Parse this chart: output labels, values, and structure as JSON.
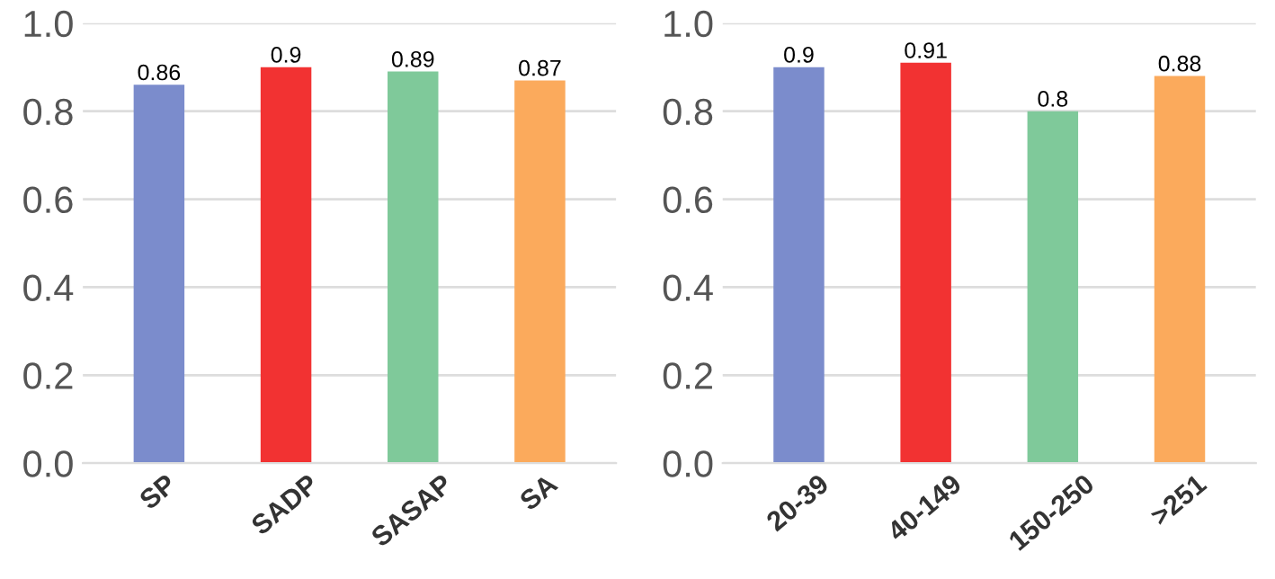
{
  "chart_data": [
    {
      "type": "bar",
      "categories": [
        "SP",
        "SADP",
        "SASAP",
        "SA"
      ],
      "values": [
        0.86,
        0.9,
        0.89,
        0.87
      ],
      "colors": [
        "#7b8ccc",
        "#f23232",
        "#7fc99a",
        "#fbaa5c"
      ],
      "ylim": [
        0,
        1.0
      ],
      "yticks": [
        {
          "value": 0,
          "label": "0.0"
        },
        {
          "value": 0.2,
          "label": "0.2"
        },
        {
          "value": 0.4,
          "label": "0.4"
        },
        {
          "value": 0.6,
          "label": "0.6"
        },
        {
          "value": 0.8,
          "label": "0.8"
        },
        {
          "value": 1.0,
          "label": "1.0"
        }
      ],
      "grid": "y",
      "data_labels": true
    },
    {
      "type": "bar",
      "categories": [
        "20-39",
        "40-149",
        "150-250",
        ">251"
      ],
      "values": [
        0.9,
        0.91,
        0.8,
        0.88
      ],
      "colors": [
        "#7b8ccc",
        "#f23232",
        "#7fc99a",
        "#fbaa5c"
      ],
      "ylim": [
        0,
        1.0
      ],
      "yticks": [
        {
          "value": 0,
          "label": "0.0"
        },
        {
          "value": 0.2,
          "label": "0.2"
        },
        {
          "value": 0.4,
          "label": "0.4"
        },
        {
          "value": 0.6,
          "label": "0.6"
        },
        {
          "value": 0.8,
          "label": "0.8"
        },
        {
          "value": 1.0,
          "label": "1.0"
        }
      ],
      "grid": "y",
      "data_labels": true
    }
  ]
}
